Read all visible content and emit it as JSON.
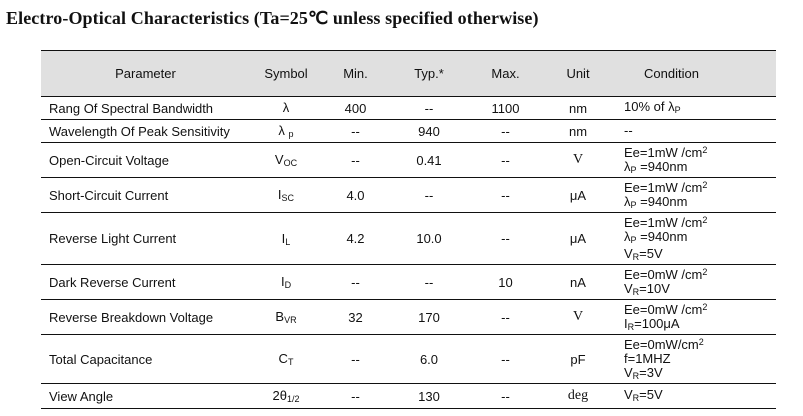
{
  "title": "Electro-Optical Characteristics (Ta=25℃  unless specified otherwise)",
  "headers": [
    "Parameter",
    "Symbol",
    "Min.",
    "Typ.*",
    "Max.",
    "Unit",
    "Condition"
  ],
  "rows": [
    {
      "parameter": "Rang Of Spectral Bandwidth",
      "symbol": {
        "base": "λ",
        "sub": ""
      },
      "min": "400",
      "typ": "--",
      "max": "1100",
      "unit": "nm",
      "condition": [
        [
          {
            "t": "10% of λ"
          },
          {
            "t": "P",
            "s": "sub"
          }
        ]
      ]
    },
    {
      "parameter": "Wavelength Of Peak Sensitivity",
      "symbol": {
        "base": "λ ",
        "sub": "p"
      },
      "min": "--",
      "typ": "940",
      "max": "--",
      "unit": "nm",
      "condition": [
        [
          {
            "t": "--"
          }
        ]
      ]
    },
    {
      "parameter": "Open-Circuit Voltage",
      "symbol": {
        "base": "V",
        "sub": "OC"
      },
      "min": "--",
      "typ": "0.41",
      "max": "--",
      "unit": "V",
      "condition": [
        [
          {
            "t": "Ee=1mW /cm"
          },
          {
            "t": "2",
            "s": "sup"
          }
        ],
        [
          {
            "t": "λ"
          },
          {
            "t": "P",
            "s": "sub"
          },
          {
            "t": " =940nm"
          }
        ]
      ]
    },
    {
      "parameter": "Short-Circuit Current",
      "symbol": {
        "base": "I",
        "sub": "SC"
      },
      "min": "4.0",
      "typ": "--",
      "max": "--",
      "unit": "μA",
      "condition": [
        [
          {
            "t": "Ee=1mW /cm"
          },
          {
            "t": "2",
            "s": "sup"
          }
        ],
        [
          {
            "t": "λ"
          },
          {
            "t": "P",
            "s": "sub"
          },
          {
            "t": " =940nm"
          }
        ]
      ]
    },
    {
      "parameter": "Reverse Light Current",
      "symbol": {
        "base": "I",
        "sub": "L"
      },
      "min": "4.2",
      "typ": "10.0",
      "max": "--",
      "unit": "μA",
      "condition": [
        [
          {
            "t": "Ee=1mW /cm"
          },
          {
            "t": "2",
            "s": "sup"
          }
        ],
        [
          {
            "t": "λ"
          },
          {
            "t": "P",
            "s": "sub"
          },
          {
            "t": " =940nm"
          }
        ],
        [
          {
            "t": "V"
          },
          {
            "t": "R",
            "s": "sub"
          },
          {
            "t": "=5V"
          }
        ]
      ]
    },
    {
      "parameter": "Dark Reverse Current",
      "symbol": {
        "base": "I",
        "sub": "D"
      },
      "min": "--",
      "typ": "--",
      "max": "10",
      "unit": "nA",
      "condition": [
        [
          {
            "t": "Ee=0mW /cm"
          },
          {
            "t": "2",
            "s": "sup"
          }
        ],
        [
          {
            "t": "V"
          },
          {
            "t": "R",
            "s": "sub"
          },
          {
            "t": "=10V"
          }
        ]
      ]
    },
    {
      "parameter": "Reverse Breakdown Voltage",
      "symbol": {
        "base": "B",
        "sub": "VR"
      },
      "min": "32",
      "typ": "170",
      "max": "--",
      "unit": "V",
      "condition": [
        [
          {
            "t": "Ee=0mW /cm"
          },
          {
            "t": "2",
            "s": "sup"
          }
        ],
        [
          {
            "t": "I"
          },
          {
            "t": "R",
            "s": "sub"
          },
          {
            "t": "=100μA"
          }
        ]
      ]
    },
    {
      "parameter": "Total Capacitance",
      "symbol": {
        "base": "C",
        "sub": "T"
      },
      "min": "--",
      "typ": "6.0",
      "max": "--",
      "unit": "pF",
      "condition": [
        [
          {
            "t": "Ee=0mW/cm"
          },
          {
            "t": "2",
            "s": "sup"
          }
        ],
        [
          {
            "t": "f=1MHZ"
          }
        ],
        [
          {
            "t": "V"
          },
          {
            "t": "R",
            "s": "sub"
          },
          {
            "t": "=3V"
          }
        ]
      ]
    },
    {
      "parameter": "View Angle",
      "symbol": {
        "base": "2θ",
        "sub": "1/2"
      },
      "min": "--",
      "typ": "130",
      "max": "--",
      "unit": "deg",
      "condition": [
        [
          {
            "t": "V"
          },
          {
            "t": "R",
            "s": "sub"
          },
          {
            "t": "=5V"
          }
        ]
      ]
    }
  ]
}
